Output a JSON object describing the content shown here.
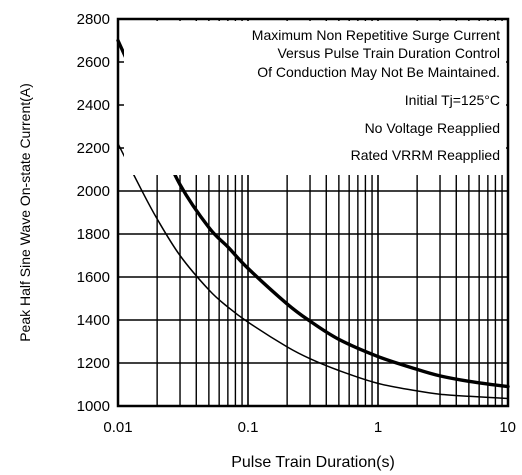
{
  "chart_data": {
    "type": "line",
    "xlabel": "Pulse Train Duration(s)",
    "ylabel": "Peak Half Sine Wave On-state Current(A)",
    "xscale": "log",
    "xlim": [
      0.01,
      10
    ],
    "ylim": [
      1000,
      2800
    ],
    "grid": true,
    "x_ticks": [
      "0.01",
      "0.1",
      "1",
      "10"
    ],
    "y_ticks": [
      "1000",
      "1200",
      "1400",
      "1600",
      "1800",
      "2000",
      "2200",
      "2400",
      "2600",
      "2800"
    ],
    "annotations": [
      "Maximum Non Repetitive Surge Current",
      "Versus Pulse Train Duration Control",
      "Of Conduction May Not Be Maintained.",
      "Initial Tj=125°C",
      "No Voltage Reapplied",
      "Rated VRRM Reapplied"
    ],
    "series": [
      {
        "style": "thick",
        "x": [
          0.01,
          0.015,
          0.02,
          0.03,
          0.05,
          0.07,
          0.1,
          0.2,
          0.3,
          0.5,
          1,
          2,
          3,
          5,
          10
        ],
        "y": [
          2700,
          2460,
          2260,
          2030,
          1830,
          1740,
          1640,
          1475,
          1395,
          1310,
          1230,
          1170,
          1140,
          1115,
          1090
        ]
      },
      {
        "style": "thin",
        "x": [
          0.01,
          0.015,
          0.02,
          0.03,
          0.05,
          0.07,
          0.1,
          0.2,
          0.3,
          0.5,
          1,
          2,
          3,
          5,
          10
        ],
        "y": [
          2220,
          2010,
          1870,
          1700,
          1540,
          1460,
          1390,
          1275,
          1220,
          1165,
          1105,
          1070,
          1055,
          1045,
          1035
        ]
      }
    ]
  }
}
